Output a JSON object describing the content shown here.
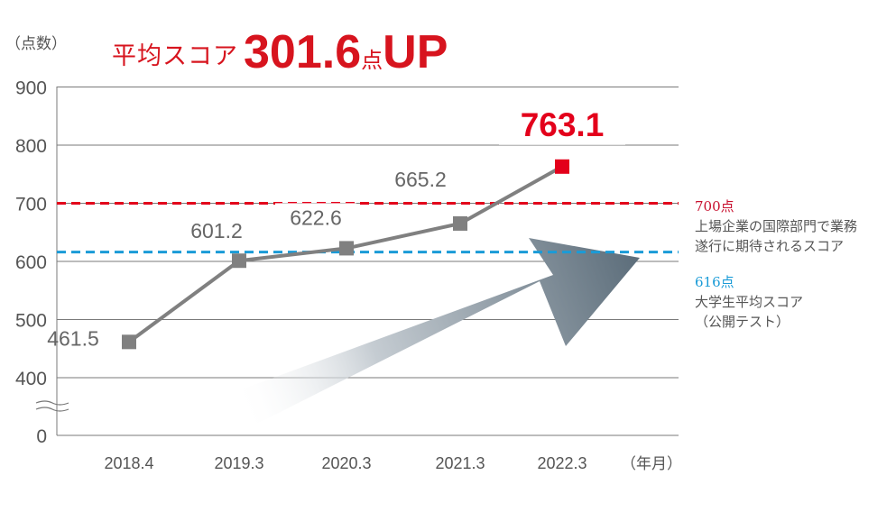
{
  "headline": {
    "prefix": "平均スコア",
    "value": "301.6",
    "unit": "点",
    "suffix": "UP"
  },
  "chart_data": {
    "type": "line",
    "title": "平均スコア 301.6点UP",
    "ylabel": "（点数）",
    "xlabel": "（年月）",
    "ylim": [
      0,
      900
    ],
    "yticks": [
      "0",
      "400",
      "500",
      "600",
      "700",
      "800",
      "900"
    ],
    "axis_break": "between 0 and 400",
    "grid": true,
    "categories": [
      "2018.4",
      "2019.3",
      "2020.3",
      "2021.3",
      "2022.3"
    ],
    "series": [
      {
        "values": [
          461.5,
          601.2,
          622.6,
          665.2,
          763.1
        ],
        "labels": [
          "461.5",
          "601.2",
          "622.6",
          "665.2",
          "763.1"
        ],
        "color": "#808080",
        "highlight_color": "#e3001b"
      }
    ],
    "reference_lines": [
      {
        "value": 700,
        "label": "700点",
        "description": [
          "上場企業の国際部門で業務",
          "遂行に期待されるスコア"
        ],
        "color": "#e3001b",
        "style": "dashed"
      },
      {
        "value": 616,
        "label": "616点",
        "description": [
          "大学生平均スコア",
          "（公開テスト）"
        ],
        "color": "#1a9bd7",
        "style": "dashed"
      }
    ],
    "decoration": "upward-trend-arrow"
  }
}
